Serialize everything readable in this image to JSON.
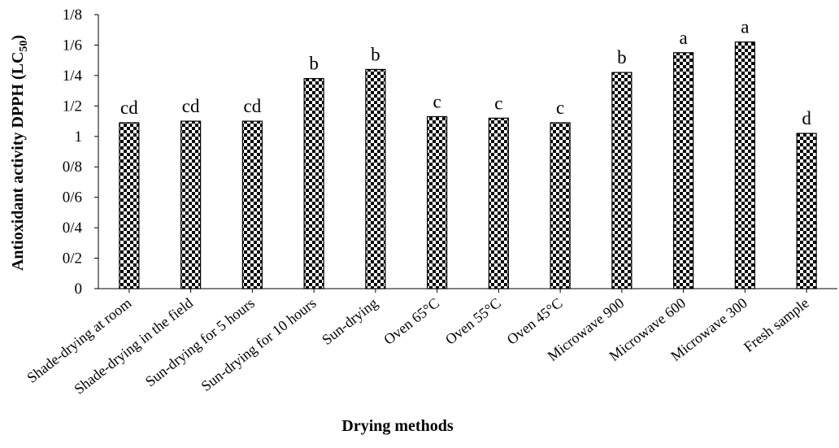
{
  "chart_data": {
    "type": "bar",
    "xlabel": "Drying methods",
    "ylabel": "Antioxidant activity DPPH (LC",
    "ylabel_sub": "50",
    "ylabel_close": ")",
    "ylim": [
      0,
      1.8
    ],
    "yticks": [
      0,
      0.2,
      0.4,
      0.6,
      0.8,
      1.0,
      1.2,
      1.4,
      1.6,
      1.8
    ],
    "ytick_labels": [
      "0",
      "0/2",
      "0/4",
      "0/6",
      "0/8",
      "1",
      "1/2",
      "1/4",
      "1/6",
      "1/8"
    ],
    "categories": [
      "Shade-drying at room",
      "Shade-drying in the field",
      "Sun-drying for 5 hours",
      "Sun-drying for 10 hours",
      "Sun-drying",
      "Oven 65°C",
      "Oven 55°C",
      "Oven 45°C",
      "Microwave 900",
      "Microwave 600",
      "Microwave 300",
      "Fresh sample"
    ],
    "values": [
      1.09,
      1.1,
      1.1,
      1.38,
      1.44,
      1.13,
      1.12,
      1.09,
      1.42,
      1.55,
      1.62,
      1.02
    ],
    "data_labels": [
      "cd",
      "cd",
      "cd",
      "b",
      "b",
      "c",
      "c",
      "c",
      "b",
      "a",
      "a",
      "d"
    ],
    "grid": false,
    "legend": "none",
    "bar_pattern": "black-white checkerboard"
  }
}
